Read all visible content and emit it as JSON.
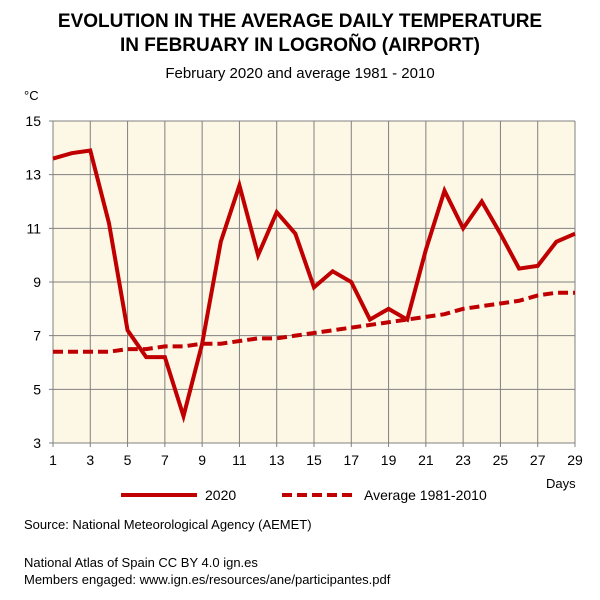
{
  "chart_data": {
    "type": "line",
    "title": [
      "EVOLUTION IN THE AVERAGE DAILY TEMPERATURE",
      "IN FEBRUARY IN LOGROÑO (AIRPORT)"
    ],
    "subtitle": "February 2020 and average 1981 - 2010",
    "ylabel": "°C",
    "xlabel": "Days",
    "xlim": [
      1,
      29
    ],
    "ylim": [
      3,
      15
    ],
    "x_ticks": [
      1,
      3,
      5,
      7,
      9,
      11,
      13,
      15,
      17,
      19,
      21,
      23,
      25,
      27,
      29
    ],
    "y_ticks": [
      3,
      5,
      7,
      9,
      11,
      13,
      15
    ],
    "grid": true,
    "legend_position": "bottom",
    "x": [
      1,
      2,
      3,
      4,
      5,
      6,
      7,
      8,
      9,
      10,
      11,
      12,
      13,
      14,
      15,
      16,
      17,
      18,
      19,
      20,
      21,
      22,
      23,
      24,
      25,
      26,
      27,
      28,
      29
    ],
    "series": [
      {
        "name": "2020",
        "style": "solid",
        "color": "#c00000",
        "values": [
          13.6,
          13.8,
          13.9,
          11.2,
          7.2,
          6.2,
          6.2,
          4.0,
          6.7,
          10.5,
          12.6,
          10.0,
          11.6,
          10.8,
          8.8,
          9.4,
          9.0,
          7.6,
          8.0,
          7.6,
          10.2,
          12.4,
          11.0,
          12.0,
          10.8,
          9.5,
          9.6,
          10.5,
          10.8
        ]
      },
      {
        "name": "Average 1981-2010",
        "style": "dashed",
        "color": "#c00000",
        "values": [
          6.4,
          6.4,
          6.4,
          6.4,
          6.5,
          6.5,
          6.6,
          6.6,
          6.7,
          6.7,
          6.8,
          6.9,
          6.9,
          7.0,
          7.1,
          7.2,
          7.3,
          7.4,
          7.5,
          7.6,
          7.7,
          7.8,
          8.0,
          8.1,
          8.2,
          8.3,
          8.5,
          8.6,
          8.6
        ]
      }
    ],
    "plot_background": "#fdf7e6",
    "grid_color": "#808080"
  },
  "footer": {
    "source": "Source: National Meteorological Agency (AEMET)",
    "license": "National Atlas of Spain CC BY 4.0 ign.es",
    "members": "Members engaged: www.ign.es/resources/ane/participantes.pdf"
  }
}
